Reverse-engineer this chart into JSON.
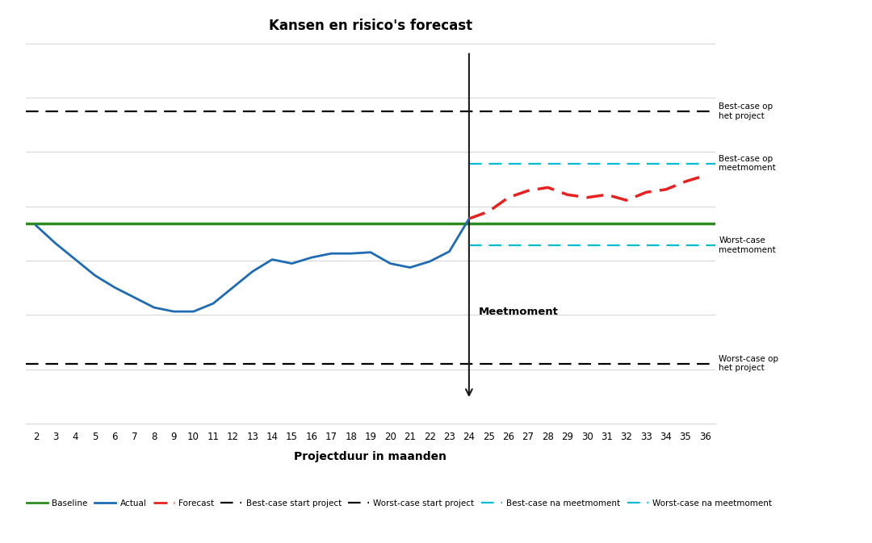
{
  "title": "Kansen en risico's forecast",
  "xlabel": "Projectduur in maanden",
  "x_ticks": [
    2,
    3,
    4,
    5,
    6,
    7,
    8,
    9,
    10,
    11,
    12,
    13,
    14,
    15,
    16,
    17,
    18,
    19,
    20,
    21,
    22,
    23,
    24,
    25,
    26,
    27,
    28,
    29,
    30,
    31,
    32,
    33,
    34,
    35,
    36
  ],
  "x_min": 1.5,
  "x_max": 36.5,
  "y_min": -5.0,
  "y_max": 4.5,
  "baseline_y": 0.0,
  "best_case_project_y": 2.8,
  "worst_case_project_y": -3.5,
  "best_case_meetmoment_y": 1.5,
  "worst_case_meetmoment_y": -0.55,
  "meetmoment_x": 24,
  "actual_x": [
    2,
    3,
    4,
    5,
    6,
    7,
    8,
    9,
    10,
    11,
    12,
    13,
    14,
    15,
    16,
    17,
    18,
    19,
    20,
    21,
    22,
    23,
    24
  ],
  "actual_y": [
    -0.05,
    -0.5,
    -0.9,
    -1.3,
    -1.6,
    -1.85,
    -2.1,
    -2.2,
    -2.2,
    -2.0,
    -1.6,
    -1.2,
    -0.9,
    -1.0,
    -0.85,
    -0.75,
    -0.75,
    -0.72,
    -1.0,
    -1.1,
    -0.95,
    -0.7,
    0.12
  ],
  "forecast_x": [
    24,
    25,
    26,
    27,
    28,
    29,
    30,
    31,
    32,
    33,
    34,
    35,
    36
  ],
  "forecast_y": [
    0.12,
    0.3,
    0.65,
    0.82,
    0.9,
    0.72,
    0.65,
    0.72,
    0.58,
    0.78,
    0.85,
    1.05,
    1.2
  ],
  "baseline_color": "#2e8b20",
  "actual_color": "#1e6bb5",
  "forecast_color": "#e82020",
  "best_case_project_color": "#000000",
  "worst_case_project_color": "#000000",
  "best_case_meetmoment_color": "#00bcd4",
  "worst_case_meetmoment_color": "#00bcd4",
  "meetmoment_line_color": "#1a1a1a",
  "annotation_fontsize": 7.5,
  "title_fontsize": 12,
  "xlabel_fontsize": 10,
  "tick_fontsize": 8.5,
  "meetmoment_label": "Meetmoment",
  "right_annot_best_project": "Best-case op\nhet project",
  "right_annot_best_meet": "Best-case op\nmeetmoment",
  "right_annot_worst_meet": "Worst-case\nmeetmoment",
  "right_annot_worst_project": "Worst-case op\nhet project",
  "legend_labels": [
    "Baseline",
    "Actual",
    "Forecast",
    "Best-case start project",
    "Worst-case start project",
    "Best-case na meetmoment",
    "Worst-case na meetmoment"
  ]
}
